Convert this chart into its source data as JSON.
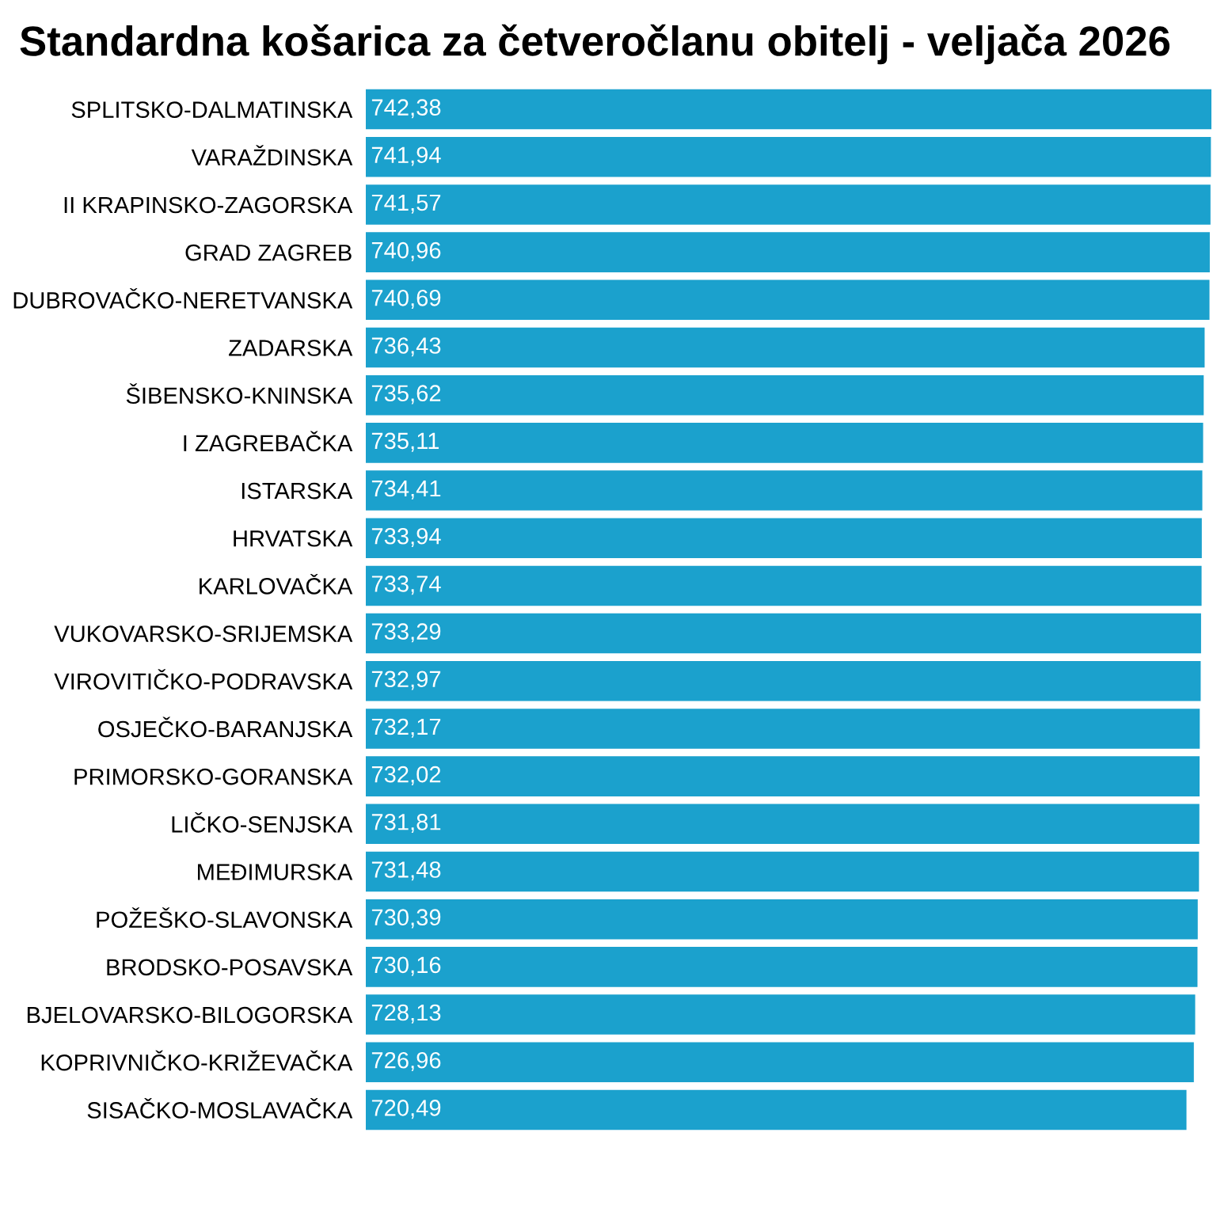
{
  "chart_data": {
    "type": "bar",
    "orientation": "horizontal",
    "title": "Standardna košarica za četveročlanu obitelj - veljača 2026",
    "categories": [
      "SPLITSKO-DALMATINSKA",
      "VARAŽDINSKA",
      "II KRAPINSKO-ZAGORSKA",
      "GRAD ZAGREB",
      "DUBROVAČKO-NERETVANSKA",
      "ZADARSKA",
      "ŠIBENSKO-KNINSKA",
      "I ZAGREBAČKA",
      "ISTARSKA",
      "HRVATSKA",
      "KARLOVAČKA",
      "VUKOVARSKO-SRIJEMSKA",
      "VIROVITIČKO-PODRAVSKA",
      "OSJEČKO-BARANJSKA",
      "PRIMORSKO-GORANSKA",
      "LIČKO-SENJSKA",
      "MEĐIMURSKA",
      "POŽEŠKO-SLAVONSKA",
      "BRODSKO-POSAVSKA",
      "BJELOVARSKO-BILOGORSKA",
      "KOPRIVNIČKO-KRIŽEVAČKA",
      "SISAČKO-MOSLAVAČKA"
    ],
    "values": [
      742.38,
      741.94,
      741.57,
      740.96,
      740.69,
      736.43,
      735.62,
      735.11,
      734.41,
      733.94,
      733.74,
      733.29,
      732.97,
      732.17,
      732.02,
      731.81,
      731.48,
      730.39,
      730.16,
      728.13,
      726.96,
      720.49
    ],
    "value_labels": [
      "742,38",
      "741,94",
      "741,57",
      "740,96",
      "740,69",
      "736,43",
      "735,62",
      "735,11",
      "734,41",
      "733,94",
      "733,74",
      "733,29",
      "732,97",
      "732,17",
      "732,02",
      "731,81",
      "731,48",
      "730,39",
      "730,16",
      "728,13",
      "726,96",
      "720,49"
    ],
    "color": "#1ba1cd",
    "grid": false,
    "legend": false
  }
}
